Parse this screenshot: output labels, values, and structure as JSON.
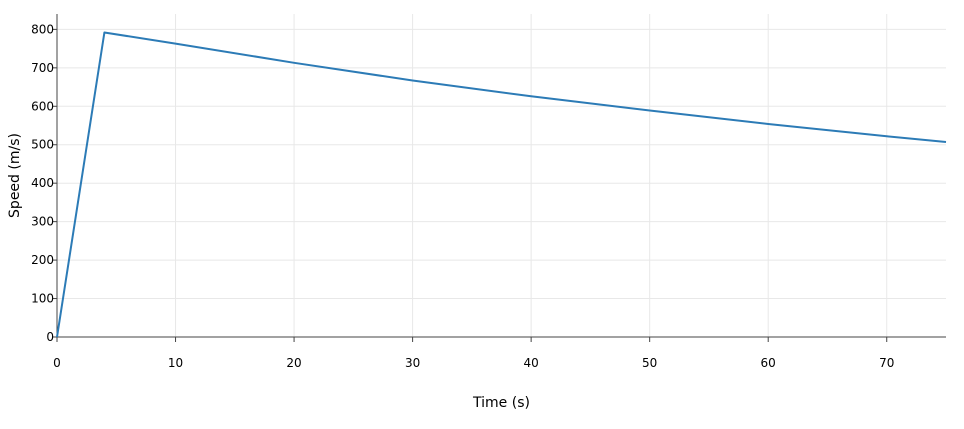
{
  "chart_data": {
    "type": "line",
    "title": "",
    "xlabel": "Time (s)",
    "ylabel": "Speed (m/s)",
    "xlim": [
      0,
      75
    ],
    "ylim": [
      0,
      840
    ],
    "xticks": [
      0,
      10,
      20,
      30,
      40,
      50,
      60,
      70
    ],
    "yticks": [
      0,
      100,
      200,
      300,
      400,
      500,
      600,
      700,
      800
    ],
    "grid": true,
    "legend": "none",
    "series": [
      {
        "color": "#2c7bb6",
        "x": [
          0,
          4,
          10,
          20,
          30,
          40,
          50,
          60,
          70,
          75
        ],
        "y": [
          0,
          792,
          763,
          713,
          667,
          626,
          589,
          554,
          522,
          507
        ]
      }
    ]
  }
}
